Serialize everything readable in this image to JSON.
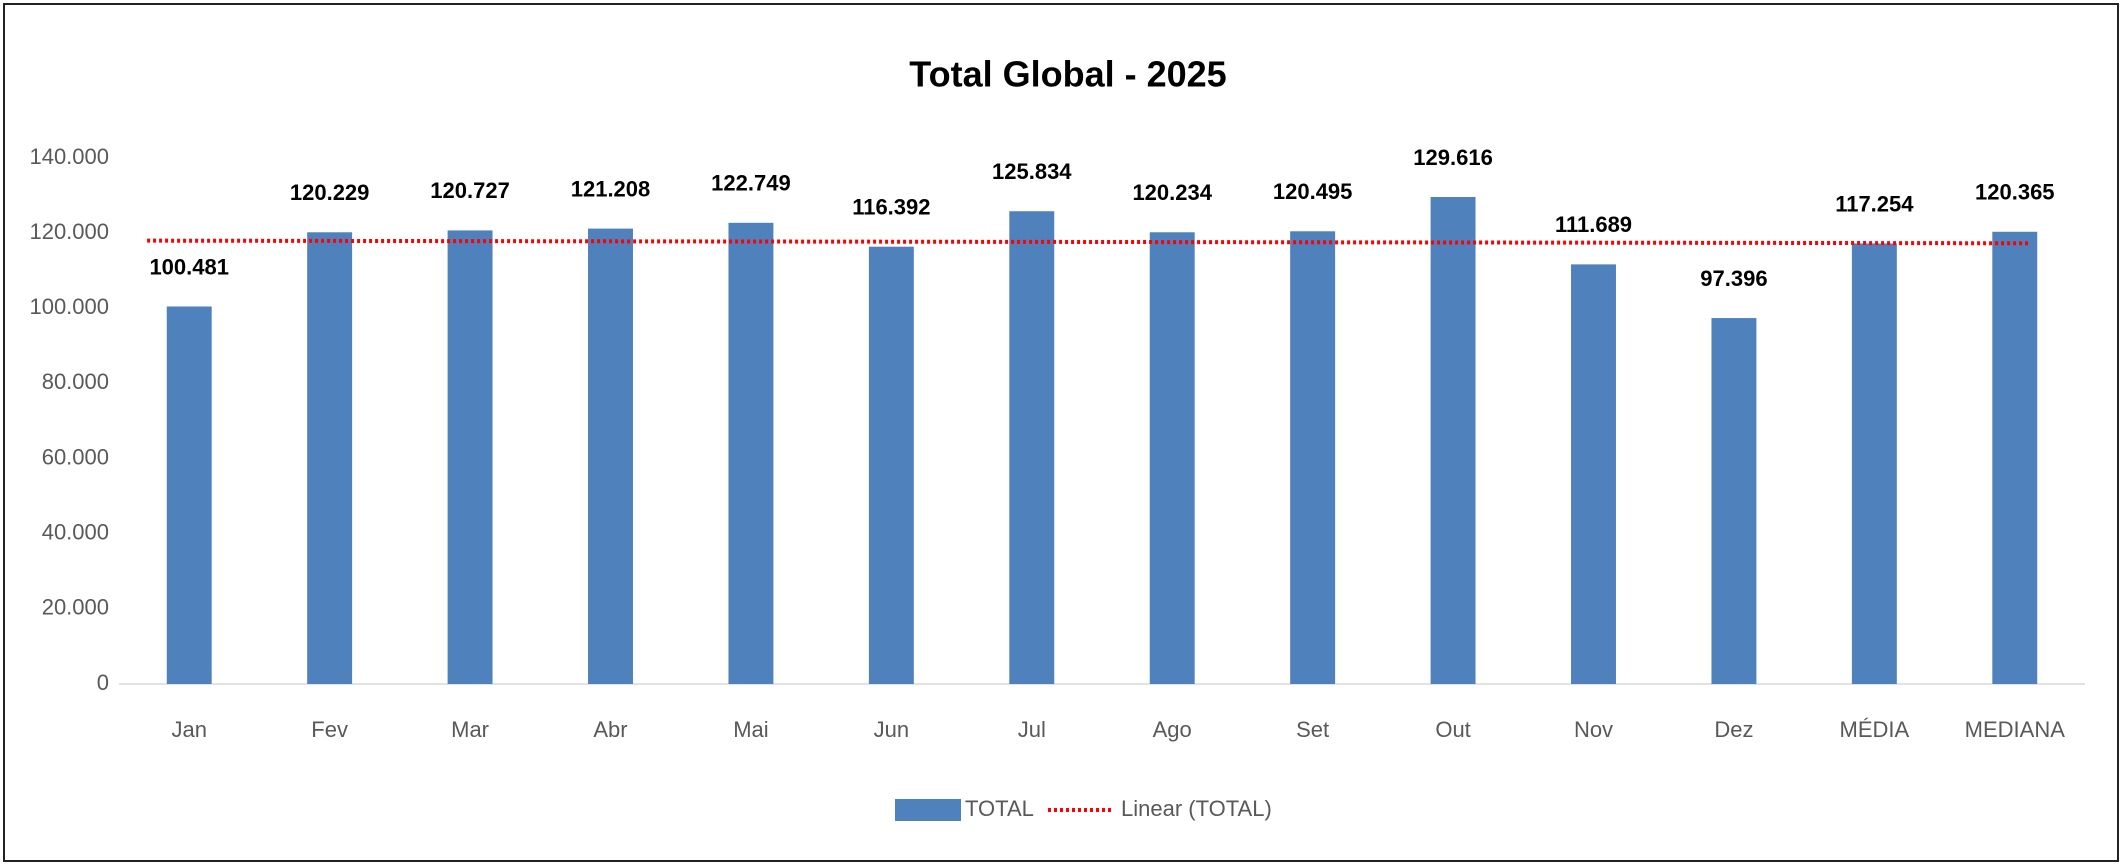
{
  "chart_data": {
    "type": "bar",
    "title": "Total Global - 2025",
    "categories": [
      "Jan",
      "Fev",
      "Mar",
      "Abr",
      "Mai",
      "Jun",
      "Jul",
      "Ago",
      "Set",
      "Out",
      "Nov",
      "Dez",
      "MÉDIA",
      "MEDIANA"
    ],
    "series": [
      {
        "name": "TOTAL",
        "color": "#4f81bd",
        "values": [
          100481,
          120229,
          120727,
          121208,
          122749,
          116392,
          125834,
          120234,
          120495,
          129616,
          111689,
          97396,
          117254,
          120365
        ],
        "value_labels": [
          "100.481",
          "120.229",
          "120.727",
          "121.208",
          "122.749",
          "116.392",
          "125.834",
          "120.234",
          "120.495",
          "129.616",
          "111.689",
          "97.396",
          "117.254",
          "120.365"
        ]
      }
    ],
    "trendline": {
      "name": "Linear (TOTAL)",
      "color": "#ff0000",
      "values": [
        118000,
        117300
      ]
    },
    "ylim": [
      0,
      140000
    ],
    "yticks": [
      0,
      {
        "value": 20000,
        "label": "20.000"
      },
      {
        "value": 40000,
        "label": "40.000"
      },
      {
        "value": 60000,
        "label": "60.000"
      },
      {
        "value": 80000,
        "label": "80.000"
      },
      {
        "value": 100000,
        "label": "100.000"
      },
      {
        "value": 120000,
        "label": "120.000"
      },
      {
        "value": 140000,
        "label": "140.000"
      }
    ],
    "grid": false,
    "legend": "bottom"
  }
}
